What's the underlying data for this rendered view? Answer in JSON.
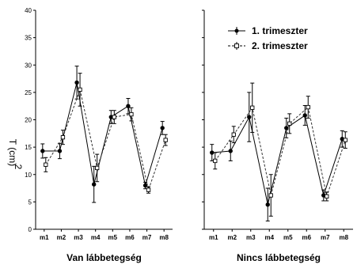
{
  "chart_data": {
    "type": "line",
    "ylabel": "T (cm)",
    "ylabel_sub": "2",
    "ylim": [
      0,
      40
    ],
    "yticks": [
      0,
      5,
      10,
      15,
      20,
      25,
      30,
      35,
      40
    ],
    "categories": [
      "m1",
      "m2",
      "m3",
      "m4",
      "m5",
      "m6",
      "m7",
      "m8"
    ],
    "legend": {
      "placement": "top-right of right panel",
      "entries": [
        "1. trimeszter",
        "2. trimeszter"
      ]
    },
    "panels": [
      {
        "label": "Van lábbetegség",
        "series": [
          {
            "name": "1. trimeszter",
            "style": "solid",
            "values": [
              14.3,
              14.3,
              26.8,
              8.2,
              20.5,
              22.5,
              8.0,
              18.5
            ],
            "err": [
              1.3,
              1.4,
              3.0,
              3.3,
              1.2,
              1.4,
              0.6,
              1.2
            ]
          },
          {
            "name": "2. trimeszter",
            "style": "dashed",
            "values": [
              11.8,
              16.8,
              25.5,
              11.2,
              20.5,
              21.0,
              7.2,
              16.3
            ],
            "err": [
              1.3,
              1.3,
              3.0,
              2.5,
              1.2,
              1.2,
              0.6,
              1.0
            ]
          }
        ]
      },
      {
        "label": "Nincs lábbetegség",
        "series": [
          {
            "name": "1. trimeszter",
            "style": "solid",
            "values": [
              14.0,
              14.3,
              20.5,
              4.5,
              18.5,
              20.8,
              6.2,
              16.5
            ],
            "err": [
              1.5,
              1.8,
              4.5,
              3.0,
              1.8,
              1.8,
              1.0,
              1.5
            ]
          },
          {
            "name": "2. trimeszter",
            "style": "dashed",
            "values": [
              12.5,
              17.3,
              22.2,
              6.2,
              19.3,
              22.3,
              6.0,
              16.3
            ],
            "err": [
              1.5,
              1.5,
              4.5,
              3.8,
              1.8,
              2.0,
              0.8,
              1.5
            ]
          }
        ]
      }
    ]
  }
}
